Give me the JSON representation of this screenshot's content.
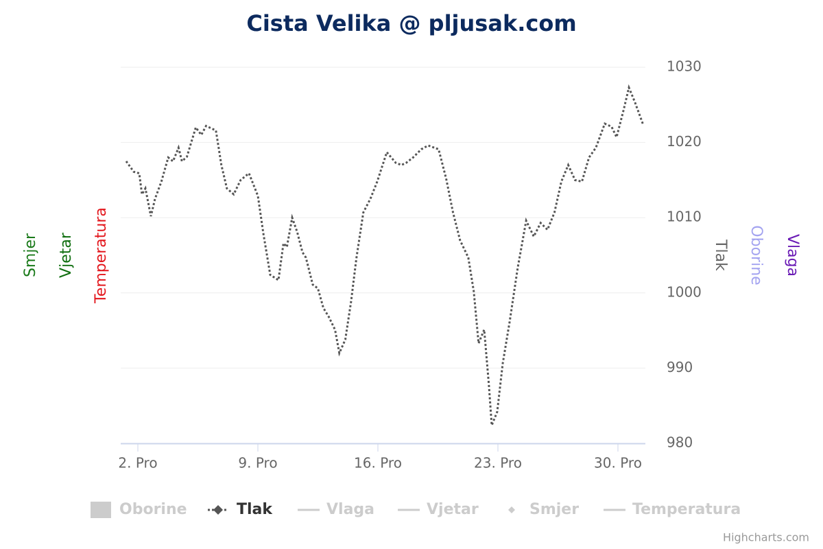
{
  "chart_data": {
    "type": "line",
    "title": "Cista Velika @ pljusak.com",
    "credits": "Highcharts.com",
    "xlim": [
      1,
      31.6
    ],
    "xticks": [
      {
        "value": 2,
        "label": "2. Pro"
      },
      {
        "value": 9,
        "label": "9. Pro"
      },
      {
        "value": 16,
        "label": "16. Pro"
      },
      {
        "value": 23,
        "label": "23. Pro"
      },
      {
        "value": 30,
        "label": "30. Pro"
      }
    ],
    "ylim": [
      980,
      1030
    ],
    "yticks": [
      980,
      990,
      1000,
      1010,
      1020,
      1030
    ],
    "grid": true,
    "axis_titles": [
      {
        "title": "Smjer",
        "color": "#1a7a1a",
        "side": "left"
      },
      {
        "title": "Vjetar",
        "color": "#0f6e0f",
        "side": "left"
      },
      {
        "title": "Temperatura",
        "color": "#e3171d",
        "side": "left"
      },
      {
        "title": "Tlak",
        "color": "#666666",
        "side": "right"
      },
      {
        "title": "Oborine",
        "color": "#a3a3f0",
        "side": "right"
      },
      {
        "title": "Vlaga",
        "color": "#6a1bb5",
        "side": "right"
      }
    ],
    "series": [
      {
        "name": "Oborine",
        "symbol": "box",
        "visible": false
      },
      {
        "name": "Tlak",
        "symbol": "dotted-diamond",
        "visible": true,
        "color": "#555555",
        "x": [
          1.32,
          1.76,
          2.08,
          2.24,
          2.44,
          2.76,
          3.0,
          3.37,
          3.77,
          4.05,
          4.37,
          4.57,
          4.86,
          5.38,
          5.7,
          5.98,
          6.55,
          6.87,
          7.19,
          7.59,
          7.99,
          8.48,
          9.0,
          9.32,
          9.72,
          10.2,
          10.49,
          10.69,
          11.0,
          11.29,
          11.6,
          11.8,
          12.2,
          12.5,
          12.82,
          13.14,
          13.5,
          13.75,
          14.1,
          14.43,
          14.75,
          15.15,
          15.56,
          15.96,
          16.52,
          17.04,
          17.37,
          17.65,
          18.05,
          18.53,
          18.93,
          19.54,
          19.98,
          20.38,
          20.79,
          21.27,
          21.59,
          21.87,
          22.2,
          22.47,
          22.64,
          22.96,
          23.28,
          23.68,
          24.16,
          24.65,
          25.09,
          25.49,
          25.89,
          26.3,
          26.7,
          27.1,
          27.5,
          27.9,
          28.31,
          28.71,
          29.23,
          29.63,
          29.92,
          30.33,
          30.64,
          31.0,
          31.45
        ],
        "values": [
          1017.5,
          1016.1,
          1015.9,
          1013.1,
          1013.9,
          1010.2,
          1012.5,
          1014.8,
          1018,
          1017.5,
          1019.3,
          1017.5,
          1018.1,
          1022,
          1021,
          1022.2,
          1021.6,
          1017,
          1013.9,
          1013.1,
          1015,
          1015.9,
          1012.9,
          1007.9,
          1002.4,
          1001.7,
          1006.6,
          1006.1,
          1010,
          1008.1,
          1005.4,
          1004.7,
          1001.1,
          1000.6,
          998,
          996.8,
          995.1,
          992,
          993.8,
          998.8,
          1004.7,
          1010.7,
          1012.5,
          1014.8,
          1018.7,
          1017.3,
          1017,
          1017.3,
          1018,
          1019.1,
          1019.6,
          1019.1,
          1015.2,
          1010.7,
          1007,
          1004.7,
          1000.2,
          993.3,
          995.1,
          987.8,
          982.4,
          984.2,
          990.6,
          996.1,
          1003.4,
          1009.6,
          1007.5,
          1009.3,
          1008.4,
          1010.7,
          1014.8,
          1017,
          1015,
          1014.8,
          1018,
          1019.3,
          1022.5,
          1022.1,
          1020.7,
          1024.3,
          1027.3,
          1025.3,
          1022.5
        ]
      },
      {
        "name": "Vlaga",
        "symbol": "line",
        "visible": false
      },
      {
        "name": "Vjetar",
        "symbol": "line",
        "visible": false
      },
      {
        "name": "Smjer",
        "symbol": "diamond",
        "visible": false
      },
      {
        "name": "Temperatura",
        "symbol": "line",
        "visible": false
      }
    ]
  }
}
